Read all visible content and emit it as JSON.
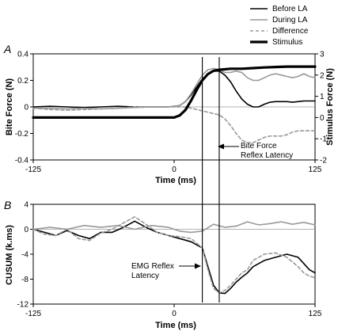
{
  "legend": [
    {
      "label": "Before LA",
      "color": "#000000",
      "dash": "",
      "width": 1.6
    },
    {
      "label": "During LA",
      "color": "#999999",
      "dash": "",
      "width": 1.6
    },
    {
      "label": "Difference",
      "color": "#999999",
      "dash": "4,3",
      "width": 1.6
    },
    {
      "label": "Stimulus",
      "color": "#000000",
      "dash": "",
      "width": 3.2
    }
  ],
  "chart_data": [
    {
      "type": "line",
      "panel_label": "A",
      "xlabel": "Time (ms)",
      "ylabel": "Bite Force (N)",
      "y2label": "Stimulus Force (N)",
      "xlim": [
        -125,
        125
      ],
      "ylim": [
        -0.4,
        0.4
      ],
      "y2lim": [
        -2,
        3
      ],
      "x_ticks": [
        -125,
        0,
        125
      ],
      "y_ticks": [
        -0.4,
        -0.2,
        0,
        0.2,
        0.4
      ],
      "y_tick_labels": [
        "-0.4",
        "-0.2",
        "0",
        "0.2",
        "0.4"
      ],
      "y2_ticks": [
        -2,
        -1,
        0,
        1,
        2,
        3
      ],
      "y2_tick_labels": [
        "-2",
        "-1",
        "0",
        "1",
        "2",
        "3"
      ],
      "vlines": [
        25,
        40
      ],
      "annotations": [
        {
          "lines": [
            "Bite Force",
            "Reflex Latency"
          ],
          "x": 42,
          "y": -0.38
        }
      ],
      "series": [
        {
          "name": "Before LA",
          "axis": "left",
          "x": [
            -125,
            -110,
            -95,
            -80,
            -65,
            -50,
            -35,
            -20,
            -5,
            5,
            10,
            15,
            20,
            25,
            30,
            35,
            40,
            45,
            50,
            55,
            60,
            65,
            70,
            75,
            80,
            85,
            90,
            95,
            100,
            105,
            110,
            115,
            120,
            125
          ],
          "y": [
            0,
            0.005,
            0,
            -0.005,
            0,
            0.005,
            0,
            0,
            0,
            0.01,
            0.04,
            0.09,
            0.15,
            0.21,
            0.25,
            0.27,
            0.27,
            0.24,
            0.19,
            0.12,
            0.06,
            0.02,
            0,
            0,
            0.02,
            0.035,
            0.04,
            0.04,
            0.04,
            0.035,
            0.04,
            0.045,
            0.045,
            0.045
          ]
        },
        {
          "name": "During LA",
          "axis": "left",
          "x": [
            -125,
            -110,
            -95,
            -80,
            -65,
            -50,
            -35,
            -20,
            -5,
            5,
            10,
            15,
            20,
            25,
            30,
            35,
            40,
            45,
            50,
            55,
            60,
            65,
            70,
            75,
            80,
            85,
            90,
            95,
            100,
            105,
            110,
            115,
            120,
            125
          ],
          "y": [
            -0.01,
            -0.01,
            -0.015,
            -0.01,
            -0.015,
            -0.01,
            -0.005,
            0,
            0,
            0.01,
            0.04,
            0.1,
            0.17,
            0.24,
            0.28,
            0.29,
            0.28,
            0.26,
            0.26,
            0.27,
            0.26,
            0.22,
            0.2,
            0.2,
            0.22,
            0.24,
            0.25,
            0.24,
            0.23,
            0.22,
            0.23,
            0.25,
            0.23,
            0.22
          ]
        },
        {
          "name": "Difference",
          "axis": "left",
          "x": [
            -125,
            -110,
            -95,
            -80,
            -65,
            -50,
            -35,
            -20,
            -5,
            5,
            10,
            15,
            20,
            25,
            30,
            35,
            40,
            45,
            50,
            55,
            60,
            65,
            70,
            75,
            80,
            85,
            90,
            95,
            100,
            105,
            110,
            115,
            120,
            125
          ],
          "y": [
            -0.01,
            -0.02,
            -0.025,
            -0.02,
            -0.015,
            -0.01,
            0,
            0,
            0,
            0,
            0,
            -0.01,
            -0.02,
            -0.03,
            -0.04,
            -0.05,
            -0.06,
            -0.09,
            -0.14,
            -0.2,
            -0.25,
            -0.27,
            -0.27,
            -0.25,
            -0.23,
            -0.22,
            -0.22,
            -0.22,
            -0.21,
            -0.19,
            -0.18,
            -0.18,
            -0.18,
            -0.18
          ]
        },
        {
          "name": "Stimulus",
          "axis": "right",
          "x": [
            -125,
            -100,
            -75,
            -50,
            -25,
            0,
            5,
            10,
            15,
            20,
            25,
            30,
            35,
            40,
            50,
            60,
            70,
            80,
            90,
            100,
            110,
            125
          ],
          "y": [
            0,
            0,
            0,
            0,
            0,
            0,
            0.1,
            0.35,
            0.8,
            1.3,
            1.75,
            2.05,
            2.2,
            2.25,
            2.3,
            2.3,
            2.33,
            2.36,
            2.38,
            2.4,
            2.4,
            2.4
          ]
        }
      ]
    },
    {
      "type": "line",
      "panel_label": "B",
      "xlabel": "Time (ms)",
      "ylabel": "CUSUM (k.ms)",
      "xlim": [
        -125,
        125
      ],
      "ylim": [
        -12,
        4
      ],
      "x_ticks": [
        -125,
        0,
        125
      ],
      "y_ticks": [
        -12,
        -8,
        -4,
        0,
        4
      ],
      "y_tick_labels": [
        "-12",
        "-8",
        "-4",
        "0",
        "4"
      ],
      "vlines": [
        25,
        40
      ],
      "annotations": [
        {
          "lines": [
            "EMG Reflex",
            "Latency"
          ],
          "x": -75,
          "y": -6.8
        }
      ],
      "series": [
        {
          "name": "Before LA",
          "x": [
            -125,
            -115,
            -105,
            -95,
            -85,
            -75,
            -65,
            -55,
            -45,
            -35,
            -25,
            -15,
            -5,
            5,
            15,
            25,
            30,
            35,
            40,
            45,
            50,
            55,
            60,
            65,
            70,
            80,
            90,
            100,
            110,
            115,
            120,
            125
          ],
          "y": [
            0,
            -0.5,
            -1,
            -0.2,
            -1,
            -1.5,
            -0.5,
            -0.5,
            0.3,
            1.3,
            0.3,
            -0.5,
            -1,
            -1.5,
            -2,
            -3,
            -6,
            -9,
            -10.2,
            -10.3,
            -9.5,
            -8.5,
            -7.7,
            -7,
            -6,
            -5,
            -4.5,
            -4,
            -4.5,
            -5.5,
            -6.5,
            -7
          ]
        },
        {
          "name": "During LA",
          "x": [
            -125,
            -110,
            -95,
            -80,
            -65,
            -50,
            -35,
            -20,
            -5,
            5,
            15,
            25,
            35,
            45,
            55,
            65,
            75,
            85,
            95,
            105,
            115,
            125
          ],
          "y": [
            0,
            0.3,
            0,
            0.6,
            0.3,
            0.6,
            0,
            0.6,
            0.3,
            -0.3,
            -0.5,
            -0.3,
            0.8,
            0.3,
            0.5,
            1.2,
            0.7,
            0.9,
            1.2,
            0.8,
            1.1,
            0.7
          ]
        },
        {
          "name": "Difference",
          "x": [
            -125,
            -115,
            -105,
            -95,
            -85,
            -75,
            -65,
            -55,
            -45,
            -35,
            -25,
            -15,
            -5,
            5,
            15,
            25,
            30,
            35,
            40,
            45,
            50,
            55,
            60,
            65,
            70,
            80,
            90,
            100,
            110,
            115,
            120,
            125
          ],
          "y": [
            0,
            -0.8,
            -1,
            0,
            -1.5,
            -1.8,
            -0.6,
            0,
            1,
            2,
            0.8,
            -0.5,
            -1,
            -1.2,
            -1.5,
            -3,
            -6.5,
            -9.5,
            -10.2,
            -9.8,
            -9,
            -8,
            -7,
            -6.5,
            -5,
            -4,
            -3.8,
            -4.5,
            -6,
            -7,
            -7.5,
            -7.8
          ]
        }
      ]
    }
  ]
}
